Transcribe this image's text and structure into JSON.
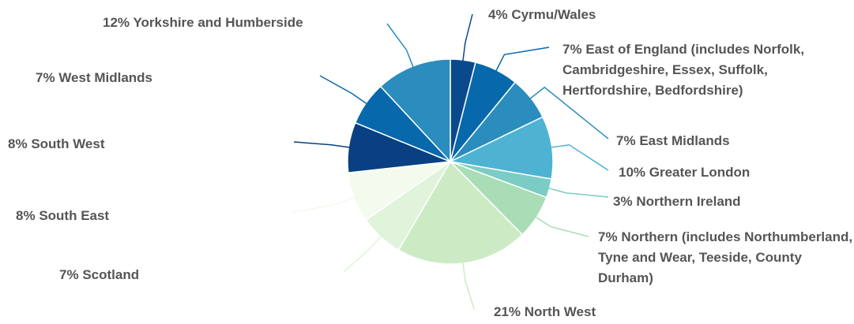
{
  "chart_data": {
    "type": "pie",
    "categories": [
      "Cyrmu/Wales",
      "East of England (includes Norfolk, Cambridgeshire, Essex, Suffolk, Hertfordshire, Bedfordshire)",
      "East Midlands",
      "Greater London",
      "Northern Ireland",
      "Northern (includes Northumberland, Tyne and Wear, Teeside, County Durham)",
      "North West",
      "Scotland",
      "South East",
      "South West",
      "West Midlands",
      "Yorkshire and Humberside"
    ],
    "values": [
      4,
      7,
      7,
      10,
      3,
      7,
      21,
      7,
      8,
      8,
      7,
      12
    ],
    "value_labels": [
      "4%",
      "7%",
      "7%",
      "10%",
      "3%",
      "7%",
      "21%",
      "7%",
      "8%",
      "8%",
      "7%",
      "12%"
    ],
    "colors": [
      "#0a4a8c",
      "#0868ac",
      "#2b8cbe",
      "#4eb3d3",
      "#7bccc4",
      "#a8ddb5",
      "#ccebc5",
      "#e0f3db",
      "#f3faee",
      "#084081",
      "#0868ac",
      "#2b8cbe"
    ]
  }
}
